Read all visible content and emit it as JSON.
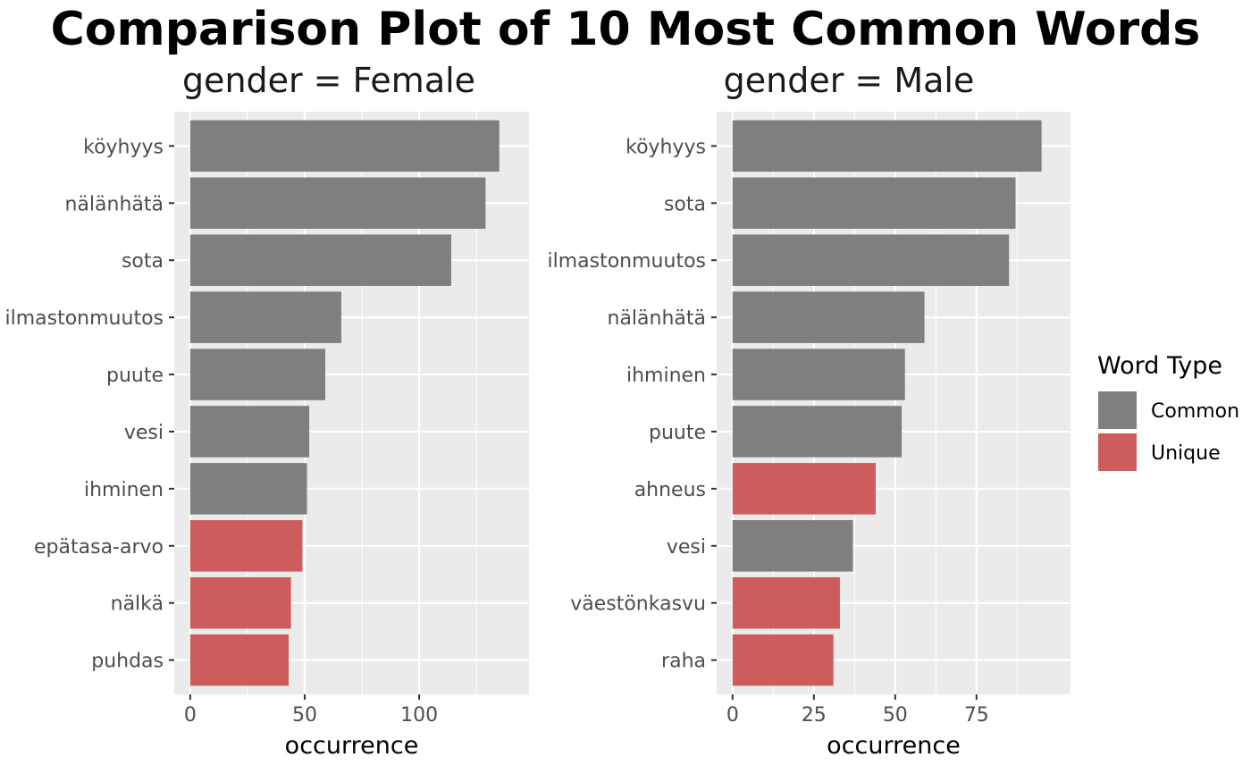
{
  "chart_data": {
    "type": "bar",
    "orientation": "horizontal",
    "title": "Comparison Plot of 10 Most Common Words",
    "xlabel": "occurrence",
    "legend": {
      "title": "Word Type",
      "placement": "right",
      "entries": [
        {
          "label": "Common",
          "color": "#7f7f7f"
        },
        {
          "label": "Unique",
          "color": "#cd5c5c"
        }
      ]
    },
    "panels": [
      {
        "facet_label": "gender = Female",
        "xlim": [
          0,
          141
        ],
        "xticks": [
          0,
          50,
          100
        ],
        "categories": [
          "köyhyys",
          "nälänhätä",
          "sota",
          "ilmastonmuutos",
          "puute",
          "vesi",
          "ihminen",
          "epätasa-arvo",
          "nälkä",
          "puhdas"
        ],
        "values": [
          135,
          129,
          114,
          66,
          59,
          52,
          51,
          49,
          44,
          43
        ],
        "types": [
          "Common",
          "Common",
          "Common",
          "Common",
          "Common",
          "Common",
          "Common",
          "Unique",
          "Unique",
          "Unique"
        ]
      },
      {
        "facet_label": "gender = Male",
        "xlim": [
          0,
          99
        ],
        "xticks": [
          0,
          25,
          50,
          75
        ],
        "categories": [
          "köyhyys",
          "sota",
          "ilmastonmuutos",
          "nälänhätä",
          "ihminen",
          "puute",
          "ahneus",
          "vesi",
          "väestönkasvu",
          "raha"
        ],
        "values": [
          95,
          87,
          85,
          59,
          53,
          52,
          44,
          37,
          33,
          31
        ],
        "types": [
          "Common",
          "Common",
          "Common",
          "Common",
          "Common",
          "Common",
          "Unique",
          "Common",
          "Unique",
          "Unique"
        ]
      }
    ],
    "colors": {
      "panel_bg": "#ebebeb",
      "grid": "#ffffff",
      "Common": "#7f7f7f",
      "Unique": "#cd5c5c"
    }
  }
}
